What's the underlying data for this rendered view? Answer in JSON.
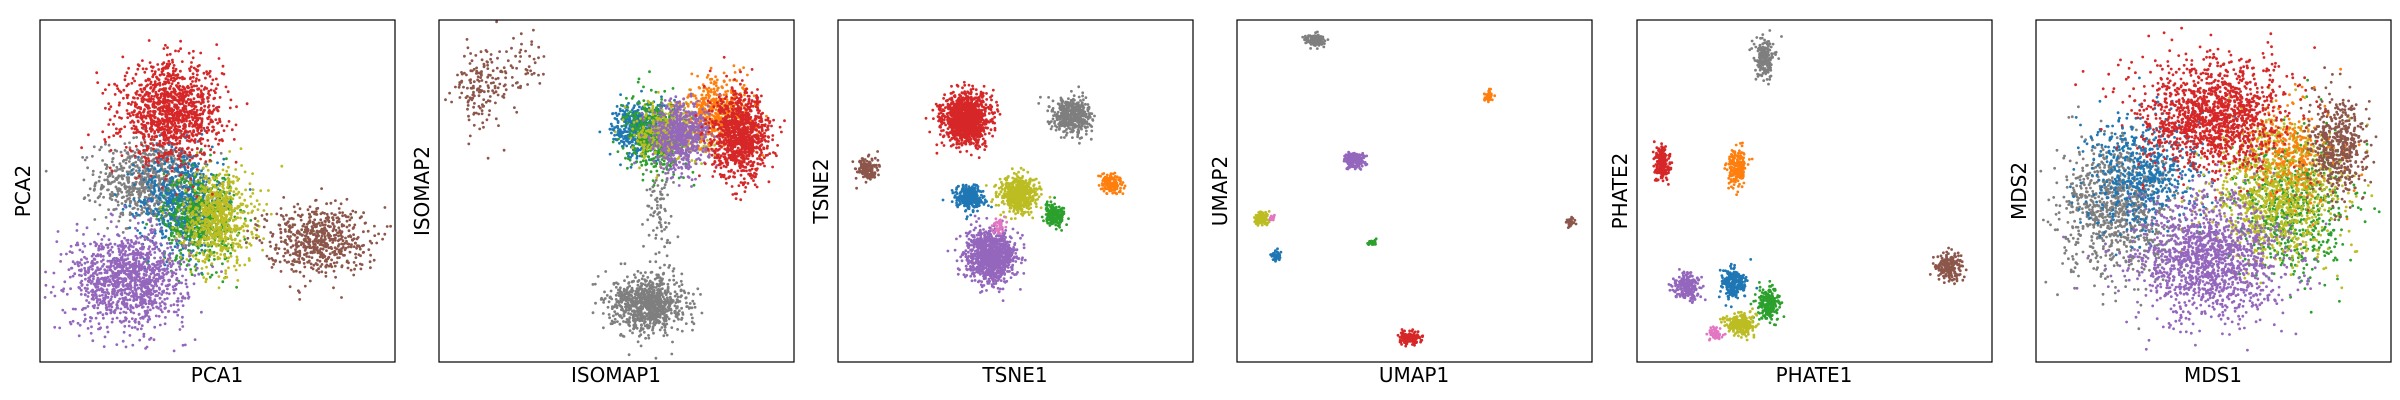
{
  "colors": {
    "blue": "#1f77b4",
    "orange": "#ff7f0e",
    "green": "#2ca02c",
    "red": "#d62728",
    "purple": "#9467bd",
    "brown": "#8c564b",
    "pink": "#e377c2",
    "gray": "#7f7f7f",
    "olive": "#bcbd22"
  },
  "chart_data": [
    {
      "type": "scatter",
      "xlabel": "PCA1",
      "ylabel": "PCA2",
      "xlim": [
        0,
        100
      ],
      "ylim": [
        0,
        100
      ],
      "grid": false,
      "ticks": false,
      "clusters": [
        {
          "color": "gray",
          "x": 30,
          "y": 53,
          "sx": 7,
          "sy": 6,
          "n": 700
        },
        {
          "color": "blue",
          "x": 40,
          "y": 47,
          "sx": 6,
          "sy": 8,
          "n": 700
        },
        {
          "color": "green",
          "x": 45,
          "y": 42,
          "sx": 5,
          "sy": 7,
          "n": 500
        },
        {
          "color": "olive",
          "x": 50,
          "y": 42,
          "sx": 5,
          "sy": 7,
          "n": 700
        },
        {
          "color": "red",
          "x": 37,
          "y": 73,
          "sx": 7,
          "sy": 7,
          "n": 1200
        },
        {
          "color": "purple",
          "x": 25,
          "y": 24,
          "sx": 8,
          "sy": 7,
          "n": 1200
        },
        {
          "color": "brown",
          "x": 78,
          "y": 36,
          "sx": 7,
          "sy": 5,
          "n": 600
        }
      ]
    },
    {
      "type": "scatter",
      "xlabel": "ISOMAP1",
      "ylabel": "ISOMAP2",
      "xlim": [
        0,
        100
      ],
      "ylim": [
        0,
        100
      ],
      "grid": false,
      "ticks": false,
      "clusters": [
        {
          "color": "blue",
          "x": 57,
          "y": 68,
          "sx": 4,
          "sy": 4,
          "n": 500
        },
        {
          "color": "green",
          "x": 61,
          "y": 66,
          "sx": 4,
          "sy": 5,
          "n": 500
        },
        {
          "color": "olive",
          "x": 66,
          "y": 67,
          "sx": 5,
          "sy": 4,
          "n": 500
        },
        {
          "color": "orange",
          "x": 79,
          "y": 73,
          "sx": 5,
          "sy": 5,
          "n": 500
        },
        {
          "color": "purple",
          "x": 68,
          "y": 66,
          "sx": 4,
          "sy": 5,
          "n": 600
        },
        {
          "color": "red",
          "x": 85,
          "y": 66,
          "sx": 4,
          "sy": 6,
          "n": 1000
        },
        {
          "color": "gray",
          "x": 59,
          "y": 17,
          "sx": 5,
          "sy": 4,
          "n": 900
        },
        {
          "color": "gray",
          "x": 62,
          "y": 42,
          "sx": 2,
          "sy": 10,
          "n": 90
        },
        {
          "color": "brown",
          "x": 12,
          "y": 80,
          "sx": 4,
          "sy": 6,
          "n": 160
        },
        {
          "color": "brown",
          "x": 24,
          "y": 88,
          "sx": 4,
          "sy": 4,
          "n": 50
        }
      ]
    },
    {
      "type": "scatter",
      "xlabel": "TSNE1",
      "ylabel": "TSNE2",
      "xlim": [
        0,
        100
      ],
      "ylim": [
        0,
        100
      ],
      "grid": false,
      "ticks": false,
      "clusters": [
        {
          "color": "red",
          "x": 36,
          "y": 71,
          "sx": 3.2,
          "sy": 3.6,
          "n": 1200
        },
        {
          "color": "gray",
          "x": 66,
          "y": 72,
          "sx": 2.6,
          "sy": 2.6,
          "n": 500
        },
        {
          "color": "brown",
          "x": 8,
          "y": 56,
          "sx": 1.5,
          "sy": 1.8,
          "n": 150
        },
        {
          "color": "blue",
          "x": 37,
          "y": 48,
          "sx": 2.0,
          "sy": 1.8,
          "n": 300
        },
        {
          "color": "olive",
          "x": 51,
          "y": 49,
          "sx": 2.6,
          "sy": 2.6,
          "n": 600
        },
        {
          "color": "green",
          "x": 61,
          "y": 43,
          "sx": 1.5,
          "sy": 1.5,
          "n": 180
        },
        {
          "color": "orange",
          "x": 77,
          "y": 52,
          "sx": 1.5,
          "sy": 1.4,
          "n": 160
        },
        {
          "color": "purple",
          "x": 43,
          "y": 31,
          "sx": 3.4,
          "sy": 3.6,
          "n": 1100
        },
        {
          "color": "pink",
          "x": 45,
          "y": 40,
          "sx": 1,
          "sy": 1,
          "n": 40
        }
      ]
    },
    {
      "type": "scatter",
      "xlabel": "UMAP1",
      "ylabel": "UMAP2",
      "xlim": [
        0,
        100
      ],
      "ylim": [
        0,
        100
      ],
      "grid": false,
      "ticks": false,
      "clusters": [
        {
          "color": "gray",
          "x": 22,
          "y": 94,
          "sx": 1.4,
          "sy": 0.9,
          "n": 120
        },
        {
          "color": "orange",
          "x": 71,
          "y": 78,
          "sx": 0.6,
          "sy": 0.8,
          "n": 40
        },
        {
          "color": "purple",
          "x": 33,
          "y": 59,
          "sx": 1.5,
          "sy": 1.2,
          "n": 180
        },
        {
          "color": "olive",
          "x": 7,
          "y": 42,
          "sx": 1.0,
          "sy": 1.0,
          "n": 120
        },
        {
          "color": "pink",
          "x": 10,
          "y": 42,
          "sx": 0.5,
          "sy": 0.4,
          "n": 20
        },
        {
          "color": "blue",
          "x": 11,
          "y": 31,
          "sx": 0.7,
          "sy": 0.7,
          "n": 50
        },
        {
          "color": "green",
          "x": 38,
          "y": 35,
          "sx": 0.6,
          "sy": 0.5,
          "n": 30
        },
        {
          "color": "brown",
          "x": 94,
          "y": 41,
          "sx": 0.6,
          "sy": 0.7,
          "n": 30
        },
        {
          "color": "red",
          "x": 49,
          "y": 7,
          "sx": 1.5,
          "sy": 0.9,
          "n": 150
        }
      ]
    },
    {
      "type": "scatter",
      "xlabel": "PHATE1",
      "ylabel": "PHATE2",
      "xlim": [
        0,
        100
      ],
      "ylim": [
        0,
        100
      ],
      "grid": false,
      "ticks": false,
      "clusters": [
        {
          "color": "gray",
          "x": 36,
          "y": 89,
          "sx": 1.4,
          "sy": 2.6,
          "n": 220
        },
        {
          "color": "red",
          "x": 7,
          "y": 58,
          "sx": 1.0,
          "sy": 2.4,
          "n": 200
        },
        {
          "color": "orange",
          "x": 28,
          "y": 57,
          "sx": 1.3,
          "sy": 2.8,
          "n": 220
        },
        {
          "color": "brown",
          "x": 88,
          "y": 28,
          "sx": 2.0,
          "sy": 2.0,
          "n": 200
        },
        {
          "color": "purple",
          "x": 14,
          "y": 22,
          "sx": 1.8,
          "sy": 2.0,
          "n": 220
        },
        {
          "color": "blue",
          "x": 27,
          "y": 23,
          "sx": 1.6,
          "sy": 2.2,
          "n": 260
        },
        {
          "color": "green",
          "x": 37,
          "y": 17,
          "sx": 1.6,
          "sy": 2.4,
          "n": 240
        },
        {
          "color": "olive",
          "x": 29,
          "y": 11,
          "sx": 2.0,
          "sy": 1.6,
          "n": 240
        },
        {
          "color": "pink",
          "x": 22,
          "y": 8,
          "sx": 1.0,
          "sy": 1.0,
          "n": 60
        }
      ]
    },
    {
      "type": "scatter",
      "xlabel": "MDS1",
      "ylabel": "MDS2",
      "xlim": [
        0,
        100
      ],
      "ylim": [
        0,
        100
      ],
      "grid": false,
      "ticks": false,
      "clusters": [
        {
          "color": "gray",
          "x": 23,
          "y": 45,
          "sx": 8,
          "sy": 10,
          "n": 1000
        },
        {
          "color": "blue",
          "x": 30,
          "y": 55,
          "sx": 8,
          "sy": 9,
          "n": 600
        },
        {
          "color": "green",
          "x": 72,
          "y": 45,
          "sx": 8,
          "sy": 10,
          "n": 600
        },
        {
          "color": "olive",
          "x": 68,
          "y": 50,
          "sx": 9,
          "sy": 10,
          "n": 1000
        },
        {
          "color": "orange",
          "x": 72,
          "y": 62,
          "sx": 7,
          "sy": 7,
          "n": 300
        },
        {
          "color": "brown",
          "x": 85,
          "y": 63,
          "sx": 4,
          "sy": 7,
          "n": 500
        },
        {
          "color": "red",
          "x": 50,
          "y": 72,
          "sx": 10,
          "sy": 8,
          "n": 1400
        },
        {
          "color": "purple",
          "x": 49,
          "y": 30,
          "sx": 10,
          "sy": 9,
          "n": 1400
        }
      ]
    }
  ]
}
